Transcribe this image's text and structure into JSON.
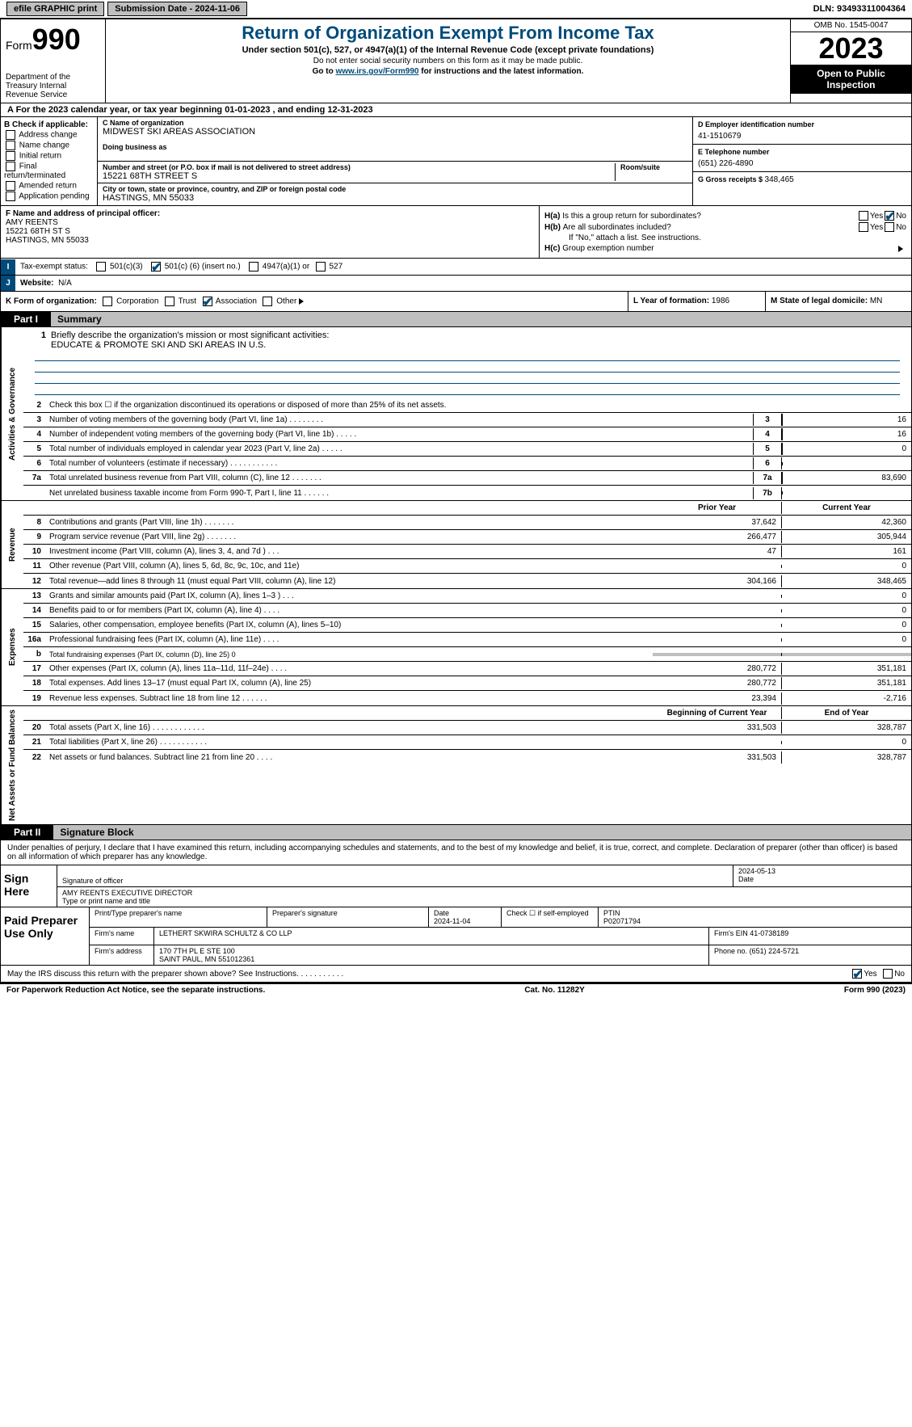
{
  "topbar": {
    "efile": "efile GRAPHIC print",
    "submission_label": "Submission Date - 2024-11-06",
    "dln": "DLN: 93493311004364"
  },
  "header": {
    "form_word": "Form",
    "form_num": "990",
    "dept": "Department of the Treasury Internal Revenue Service",
    "title": "Return of Organization Exempt From Income Tax",
    "subtitle": "Under section 501(c), 527, or 4947(a)(1) of the Internal Revenue Code (except private foundations)",
    "note1": "Do not enter social security numbers on this form as it may be made public.",
    "note2_pre": "Go to ",
    "note2_link": "www.irs.gov/Form990",
    "note2_post": " for instructions and the latest information.",
    "omb": "OMB No. 1545-0047",
    "year": "2023",
    "open": "Open to Public Inspection"
  },
  "line_a": "A For the 2023 calendar year, or tax year beginning 01-01-2023   , and ending 12-31-2023",
  "box_b": {
    "title": "B Check if applicable:",
    "items": [
      "Address change",
      "Name change",
      "Initial return",
      "Final return/terminated",
      "Amended return",
      "Application pending"
    ]
  },
  "box_c": {
    "name_lbl": "C Name of organization",
    "name": "MIDWEST SKI AREAS ASSOCIATION",
    "dba_lbl": "Doing business as",
    "street_lbl": "Number and street (or P.O. box if mail is not delivered to street address)",
    "room_lbl": "Room/suite",
    "street": "15221 68TH STREET S",
    "city_lbl": "City or town, state or province, country, and ZIP or foreign postal code",
    "city": "HASTINGS, MN  55033"
  },
  "box_d": {
    "ein_lbl": "D Employer identification number",
    "ein": "41-1510679",
    "phone_lbl": "E Telephone number",
    "phone": "(651) 226-4890",
    "gross_lbl": "G Gross receipts $ ",
    "gross": "348,465"
  },
  "box_f": {
    "lbl": "F  Name and address of principal officer:",
    "name": "AMY REENTS",
    "addr1": "15221 68TH ST S",
    "addr2": "HASTINGS, MN  55033"
  },
  "box_h": {
    "a_lbl": "H(a)",
    "a_q": "Is this a group return for subordinates?",
    "b_lbl": "H(b)",
    "b_q": "Are all subordinates included?",
    "b_note": "If \"No,\" attach a list. See instructions.",
    "c_lbl": "H(c)",
    "c_q": "Group exemption number",
    "yes": "Yes",
    "no": "No"
  },
  "row_i": {
    "lbl": "I",
    "title": "Tax-exempt status:",
    "o1": "501(c)(3)",
    "o2_pre": "501(c) (",
    "o2_num": "6",
    "o2_post": ") (insert no.)",
    "o3": "4947(a)(1) or",
    "o4": "527"
  },
  "row_j": {
    "lbl": "J",
    "title": "Website:",
    "val": "N/A"
  },
  "row_k": {
    "lbl": "K Form of organization:",
    "o1": "Corporation",
    "o2": "Trust",
    "o3": "Association",
    "o4": "Other"
  },
  "row_l": {
    "lbl": "L Year of formation: ",
    "val": "1986"
  },
  "row_m": {
    "lbl": "M State of legal domicile: ",
    "val": "MN"
  },
  "part1": {
    "tab": "Part I",
    "title": "Summary"
  },
  "vlabels": {
    "ag": "Activities & Governance",
    "rev": "Revenue",
    "exp": "Expenses",
    "nab": "Net Assets or Fund Balances"
  },
  "mission": {
    "num": "1",
    "lbl": "Briefly describe the organization's mission or most significant activities:",
    "txt": "EDUCATE & PROMOTE SKI AND SKI AREAS IN U.S."
  },
  "activities_rows": [
    {
      "n": "2",
      "t": "Check this box ☐  if the organization discontinued its operations or disposed of more than 25% of its net assets."
    },
    {
      "n": "3",
      "t": "Number of voting members of the governing body (Part VI, line 1a)   .   .   .   .   .   .   .   .",
      "b": "3",
      "v": "16"
    },
    {
      "n": "4",
      "t": "Number of independent voting members of the governing body (Part VI, line 1b)   .   .   .   .   .",
      "b": "4",
      "v": "16"
    },
    {
      "n": "5",
      "t": "Total number of individuals employed in calendar year 2023 (Part V, line 2a)   .   .   .   .   .",
      "b": "5",
      "v": "0"
    },
    {
      "n": "6",
      "t": "Total number of volunteers (estimate if necessary)   .   .   .   .   .   .   .   .   .   .   .",
      "b": "6",
      "v": ""
    },
    {
      "n": "7a",
      "t": "Total unrelated business revenue from Part VIII, column (C), line 12   .   .   .   .   .   .   .",
      "b": "7a",
      "v": "83,690"
    },
    {
      "n": "",
      "t": "Net unrelated business taxable income from Form 990-T, Part I, line 11   .   .   .   .   .   .",
      "b": "7b",
      "v": ""
    }
  ],
  "col_hdrs": {
    "prior": "Prior Year",
    "current": "Current Year",
    "beg": "Beginning of Current Year",
    "end": "End of Year"
  },
  "revenue_rows": [
    {
      "n": "8",
      "t": "Contributions and grants (Part VIII, line 1h)   .   .   .   .   .   .   .",
      "p": "37,642",
      "c": "42,360"
    },
    {
      "n": "9",
      "t": "Program service revenue (Part VIII, line 2g)   .   .   .   .   .   .   .",
      "p": "266,477",
      "c": "305,944"
    },
    {
      "n": "10",
      "t": "Investment income (Part VIII, column (A), lines 3, 4, and 7d )   .   .   .",
      "p": "47",
      "c": "161"
    },
    {
      "n": "11",
      "t": "Other revenue (Part VIII, column (A), lines 5, 6d, 8c, 9c, 10c, and 11e)",
      "p": "",
      "c": "0"
    },
    {
      "n": "12",
      "t": "Total revenue—add lines 8 through 11 (must equal Part VIII, column (A), line 12)",
      "p": "304,166",
      "c": "348,465"
    }
  ],
  "expense_rows": [
    {
      "n": "13",
      "t": "Grants and similar amounts paid (Part IX, column (A), lines 1–3 )   .   .   .",
      "p": "",
      "c": "0"
    },
    {
      "n": "14",
      "t": "Benefits paid to or for members (Part IX, column (A), line 4)   .   .   .   .",
      "p": "",
      "c": "0"
    },
    {
      "n": "15",
      "t": "Salaries, other compensation, employee benefits (Part IX, column (A), lines 5–10)",
      "p": "",
      "c": "0"
    },
    {
      "n": "16a",
      "t": "Professional fundraising fees (Part IX, column (A), line 11e)   .   .   .   .",
      "p": "",
      "c": "0"
    },
    {
      "n": "b",
      "t": "Total fundraising expenses (Part IX, column (D), line 25) 0",
      "grey": true
    },
    {
      "n": "17",
      "t": "Other expenses (Part IX, column (A), lines 11a–11d, 11f–24e)   .   .   .   .",
      "p": "280,772",
      "c": "351,181"
    },
    {
      "n": "18",
      "t": "Total expenses. Add lines 13–17 (must equal Part IX, column (A), line 25)",
      "p": "280,772",
      "c": "351,181"
    },
    {
      "n": "19",
      "t": "Revenue less expenses. Subtract line 18 from line 12   .   .   .   .   .   .",
      "p": "23,394",
      "c": "-2,716"
    }
  ],
  "netassets_rows": [
    {
      "n": "20",
      "t": "Total assets (Part X, line 16)   .   .   .   .   .   .   .   .   .   .   .   .",
      "p": "331,503",
      "c": "328,787"
    },
    {
      "n": "21",
      "t": "Total liabilities (Part X, line 26)   .   .   .   .   .   .   .   .   .   .   .",
      "p": "",
      "c": "0"
    },
    {
      "n": "22",
      "t": "Net assets or fund balances. Subtract line 21 from line 20   .   .   .   .",
      "p": "331,503",
      "c": "328,787"
    }
  ],
  "part2": {
    "tab": "Part II",
    "title": "Signature Block"
  },
  "perjury": "Under penalties of perjury, I declare that I have examined this return, including accompanying schedules and statements, and to the best of my knowledge and belief, it is true, correct, and complete. Declaration of preparer (other than officer) is based on all information of which preparer has any knowledge.",
  "sign": {
    "left": "Sign Here",
    "sig_lbl": "Signature of officer",
    "date_lbl": "Date",
    "date": "2024-05-13",
    "name": "AMY REENTS  EXECUTIVE DIRECTOR",
    "name_lbl": "Type or print name and title"
  },
  "prep": {
    "left": "Paid Preparer Use Only",
    "h1": "Print/Type preparer's name",
    "h2": "Preparer's signature",
    "h3": "Date",
    "date": "2024-11-04",
    "h4": "Check ☐ if self-employed",
    "h5": "PTIN",
    "ptin": "P02071794",
    "firm_lbl": "Firm's name",
    "firm": "LETHERT SKWIRA SCHULTZ & CO LLP",
    "ein_lbl": "Firm's EIN",
    "ein": "41-0738189",
    "addr_lbl": "Firm's address",
    "addr1": "170 7TH PL E STE 100",
    "addr2": "SAINT PAUL, MN  551012361",
    "phone_lbl": "Phone no.",
    "phone": "(651) 224-5721"
  },
  "discuss": {
    "q": "May the IRS discuss this return with the preparer shown above? See Instructions.   .   .   .   .   .   .   .   .   .   .",
    "yes": "Yes",
    "no": "No"
  },
  "footer": {
    "left": "For Paperwork Reduction Act Notice, see the separate instructions.",
    "mid": "Cat. No. 11282Y",
    "right": "Form 990 (2023)"
  }
}
